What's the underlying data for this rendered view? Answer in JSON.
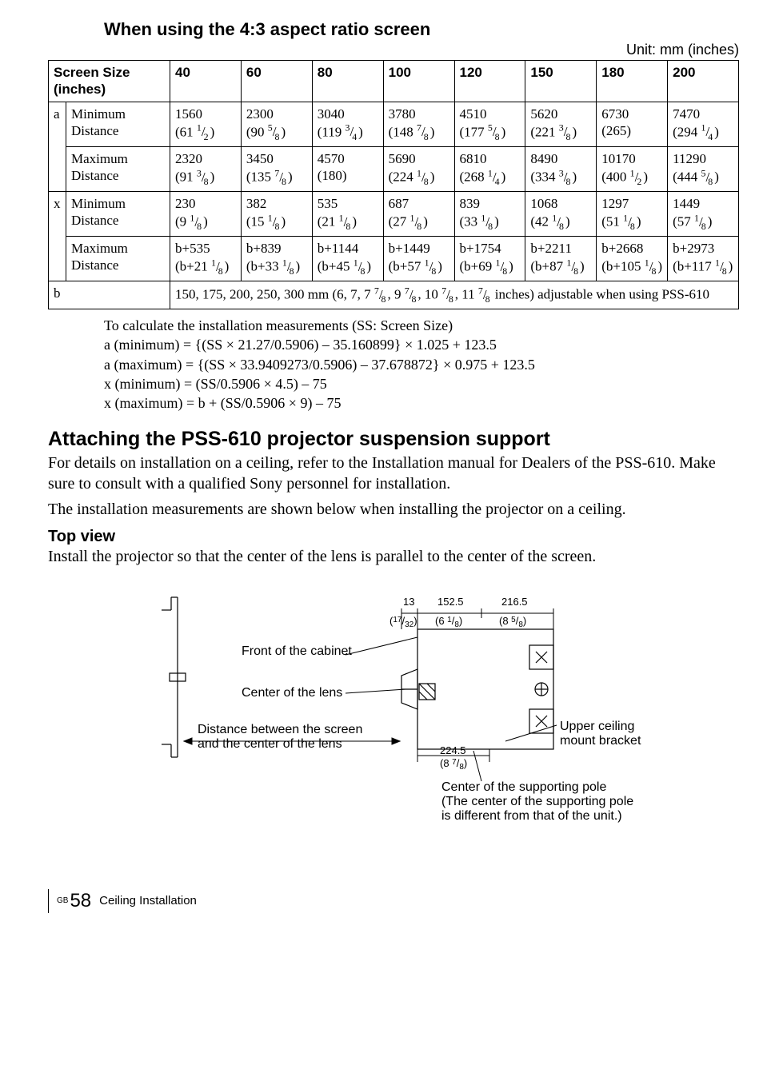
{
  "title_43": "When using the 4:3 aspect ratio screen",
  "unit_label": "Unit: mm (inches)",
  "table": {
    "header": [
      "Screen Size (inches)",
      "40",
      "60",
      "80",
      "100",
      "120",
      "150",
      "180",
      "200"
    ],
    "group_a_label": "a",
    "group_x_label": "x",
    "row_a_min_label": "Minimum Distance",
    "row_a_max_label": "Maximum Distance",
    "row_x_min_label": "Minimum Distance",
    "row_x_max_label": "Maximum Distance",
    "a_min": [
      {
        "mm": "1560",
        "in": "(61 ",
        "n": "1",
        "d": "2",
        "tail": ")"
      },
      {
        "mm": "2300",
        "in": "(90 ",
        "n": "5",
        "d": "8",
        "tail": ")"
      },
      {
        "mm": "3040",
        "in": "(119 ",
        "n": "3",
        "d": "4",
        "tail": ")"
      },
      {
        "mm": "3780",
        "in": "(148 ",
        "n": "7",
        "d": "8",
        "tail": ")"
      },
      {
        "mm": "4510",
        "in": "(177 ",
        "n": "5",
        "d": "8",
        "tail": ")"
      },
      {
        "mm": "5620",
        "in": "(221 ",
        "n": "3",
        "d": "8",
        "tail": ")"
      },
      {
        "mm": "6730",
        "in": "(265)",
        "n": "",
        "d": "",
        "tail": ""
      },
      {
        "mm": "7470",
        "in": "(294 ",
        "n": "1",
        "d": "4",
        "tail": ")"
      }
    ],
    "a_max": [
      {
        "mm": "2320",
        "in": "(91 ",
        "n": "3",
        "d": "8",
        "tail": ")"
      },
      {
        "mm": "3450",
        "in": "(135 ",
        "n": "7",
        "d": "8",
        "tail": ")"
      },
      {
        "mm": "4570",
        "in": "(180)",
        "n": "",
        "d": "",
        "tail": ""
      },
      {
        "mm": "5690",
        "in": "(224 ",
        "n": "1",
        "d": "8",
        "tail": ")"
      },
      {
        "mm": "6810",
        "in": "(268 ",
        "n": "1",
        "d": "4",
        "tail": ")"
      },
      {
        "mm": "8490",
        "in": "(334 ",
        "n": "3",
        "d": "8",
        "tail": ")"
      },
      {
        "mm": "10170",
        "in": "(400 ",
        "n": "1",
        "d": "2",
        "tail": ")"
      },
      {
        "mm": "11290",
        "in": "(444 ",
        "n": "5",
        "d": "8",
        "tail": ")"
      }
    ],
    "x_min": [
      {
        "mm": "230",
        "in": "(9 ",
        "n": "1",
        "d": "8",
        "tail": ")"
      },
      {
        "mm": "382",
        "in": "(15 ",
        "n": "1",
        "d": "8",
        "tail": ")"
      },
      {
        "mm": "535",
        "in": "(21 ",
        "n": "1",
        "d": "8",
        "tail": ")"
      },
      {
        "mm": "687",
        "in": "(27 ",
        "n": "1",
        "d": "8",
        "tail": ")"
      },
      {
        "mm": "839",
        "in": "(33 ",
        "n": "1",
        "d": "8",
        "tail": ")"
      },
      {
        "mm": "1068",
        "in": "(42 ",
        "n": "1",
        "d": "8",
        "tail": ")"
      },
      {
        "mm": "1297",
        "in": "(51 ",
        "n": "1",
        "d": "8",
        "tail": ")"
      },
      {
        "mm": "1449",
        "in": "(57 ",
        "n": "1",
        "d": "8",
        "tail": ")"
      }
    ],
    "x_max": [
      {
        "mm": "b+535",
        "in": "(b+21 ",
        "n": "1",
        "d": "8",
        "tail": ")"
      },
      {
        "mm": "b+839",
        "in": "(b+33 ",
        "n": "1",
        "d": "8",
        "tail": ")"
      },
      {
        "mm": "b+1144",
        "in": "(b+45 ",
        "n": "1",
        "d": "8",
        "tail": ")"
      },
      {
        "mm": "b+1449",
        "in": "(b+57 ",
        "n": "1",
        "d": "8",
        "tail": ")"
      },
      {
        "mm": "b+1754",
        "in": "(b+69 ",
        "n": "1",
        "d": "8",
        "tail": ")"
      },
      {
        "mm": "b+2211",
        "in": "(b+87 ",
        "n": "1",
        "d": "8",
        "tail": ")"
      },
      {
        "mm": "b+2668",
        "in": "(b+105 ",
        "n": "1",
        "d": "8",
        "tail": ")"
      },
      {
        "mm": "b+2973",
        "in": "(b+117 ",
        "n": "1",
        "d": "8",
        "tail": ")"
      }
    ],
    "b_label": "b",
    "b_text_1": "150, 175, 200, 250, 300 mm (6, 7, 7 ",
    "b_frac_1_n": "7",
    "b_frac_1_d": "8",
    "b_text_2": ", 9 ",
    "b_frac_2_n": "7",
    "b_frac_2_d": "8",
    "b_text_3": ", 10 ",
    "b_frac_3_n": "7",
    "b_frac_3_d": "8",
    "b_text_4": ", 11 ",
    "b_frac_4_n": "7",
    "b_frac_4_d": "8",
    "b_text_5": " inches) adjustable when using PSS-610"
  },
  "calc": {
    "l1": "To calculate the installation measurements (SS: Screen Size)",
    "l2": "a (minimum) = {(SS × 21.27/0.5906) – 35.160899} × 1.025 + 123.5",
    "l3": "a (maximum) = {(SS × 33.9409273/0.5906) – 37.678872} × 0.975 + 123.5",
    "l4": "x (minimum) = (SS/0.5906 × 4.5) – 75",
    "l5": "x (maximum) = b + (SS/0.5906 × 9) – 75"
  },
  "h2": "Attaching the PSS-610 projector suspension support",
  "p1": "For details on installation on a ceiling, refer to the Installation manual for Dealers of the PSS-610. Make sure to consult with a qualified Sony personnel for installation.",
  "p2": "The installation measurements are shown below when installing the projector on a ceiling.",
  "h3": "Top view",
  "p3": "Install the projector so that the center of the lens is parallel to the center of the screen.",
  "diagram": {
    "front_cabinet": "Front of the cabinet",
    "center_lens": "Center of the lens",
    "dist_line1": "Distance between the screen",
    "dist_line2": "and the center of the lens",
    "upper_bracket_1": "Upper ceiling",
    "upper_bracket_2": "mount bracket",
    "support_pole_1": "Center of the supporting pole",
    "support_pole_2": "(The center of the supporting pole",
    "support_pole_3": "is different from that of the unit.)",
    "dim_13_mm": "13",
    "dim_13_in_n": "17",
    "dim_13_in_d": "32",
    "dim_1525_mm": "152.5",
    "dim_1525_in": "(6 ",
    "dim_1525_n": "1",
    "dim_1525_d": "8",
    "dim_1525_tail": ")",
    "dim_2165_mm": "216.5",
    "dim_2165_in": "(8 ",
    "dim_2165_n": "5",
    "dim_2165_d": "8",
    "dim_2165_tail": ")",
    "dim_2245_mm": "224.5",
    "dim_2245_in": "(8 ",
    "dim_2245_n": "7",
    "dim_2245_d": "8",
    "dim_2245_tail": ")"
  },
  "footer": {
    "gb": "GB",
    "page": "58",
    "label": "Ceiling Installation"
  }
}
